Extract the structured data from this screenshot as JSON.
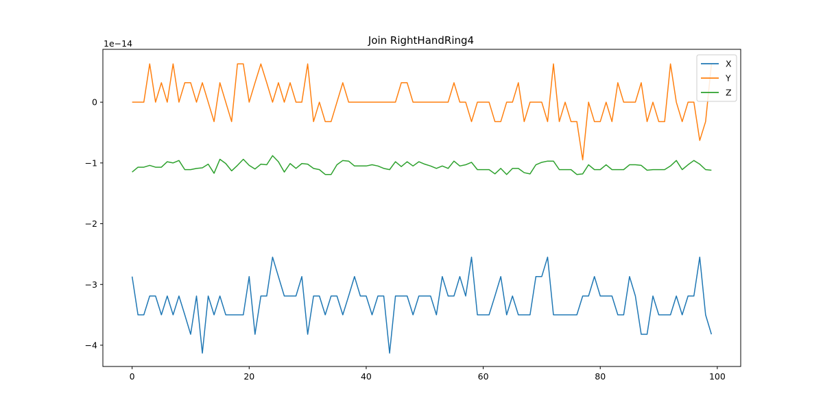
{
  "chart_data": {
    "type": "line",
    "title": "Join RightHandRing4",
    "offset_label": "1e−14",
    "xlim": [
      -5,
      104
    ],
    "ylim": [
      -4.35,
      0.87
    ],
    "xticks": [
      0,
      20,
      40,
      60,
      80,
      100
    ],
    "yticks": [
      0,
      -1,
      -2,
      -3,
      -4
    ],
    "xtick_labels": [
      "0",
      "20",
      "40",
      "60",
      "80",
      "100"
    ],
    "ytick_labels": [
      "0",
      "−1",
      "−2",
      "−3",
      "−4"
    ],
    "legend_position": "top-right",
    "grid": false,
    "series": [
      {
        "name": "X",
        "color": "#1f77b4",
        "values": [
          -2.87,
          -3.5,
          -3.5,
          -3.19,
          -3.19,
          -3.5,
          -3.19,
          -3.5,
          -3.19,
          -3.5,
          -3.82,
          -3.19,
          -4.13,
          -3.19,
          -3.5,
          -3.19,
          -3.5,
          -3.5,
          -3.5,
          -3.5,
          -2.87,
          -3.82,
          -3.19,
          -3.19,
          -2.55,
          -2.87,
          -3.19,
          -3.19,
          -3.19,
          -2.87,
          -3.82,
          -3.19,
          -3.19,
          -3.5,
          -3.19,
          -3.19,
          -3.5,
          -3.19,
          -2.87,
          -3.19,
          -3.19,
          -3.5,
          -3.19,
          -3.19,
          -4.13,
          -3.19,
          -3.19,
          -3.19,
          -3.5,
          -3.19,
          -3.19,
          -3.19,
          -3.5,
          -2.87,
          -3.19,
          -3.19,
          -2.87,
          -3.19,
          -2.55,
          -3.5,
          -3.5,
          -3.5,
          -3.19,
          -2.87,
          -3.5,
          -3.19,
          -3.5,
          -3.5,
          -3.5,
          -2.87,
          -2.87,
          -2.55,
          -3.5,
          -3.5,
          -3.5,
          -3.5,
          -3.5,
          -3.19,
          -3.19,
          -2.87,
          -3.19,
          -3.19,
          -3.19,
          -3.5,
          -3.5,
          -2.87,
          -3.19,
          -3.82,
          -3.82,
          -3.19,
          -3.5,
          -3.5,
          -3.5,
          -3.19,
          -3.5,
          -3.19,
          -3.19,
          -2.55,
          -3.5,
          -3.82
        ]
      },
      {
        "name": "Y",
        "color": "#ff7f0e",
        "values": [
          0,
          0,
          0,
          0.63,
          0,
          0.32,
          0,
          0.63,
          0,
          0.32,
          0.32,
          0,
          0.32,
          0,
          -0.32,
          0.32,
          0,
          -0.32,
          0.63,
          0.63,
          0,
          0.32,
          0.63,
          0.32,
          0,
          0.32,
          0,
          0.32,
          0,
          0,
          0.63,
          -0.32,
          0,
          -0.32,
          -0.32,
          0,
          0.32,
          0,
          0,
          0,
          0,
          0,
          0,
          0,
          0,
          0,
          0.32,
          0.32,
          0,
          0,
          0,
          0,
          0,
          0,
          0,
          0.32,
          0,
          0,
          -0.32,
          0,
          0,
          0,
          -0.32,
          -0.32,
          0,
          0,
          0.32,
          -0.32,
          0,
          0,
          0,
          -0.32,
          0.63,
          -0.32,
          0,
          -0.32,
          -0.32,
          -0.95,
          0,
          -0.32,
          -0.32,
          0,
          -0.32,
          0.32,
          0,
          0,
          0,
          0.32,
          -0.32,
          0,
          -0.32,
          -0.32,
          0.63,
          0,
          -0.32,
          0,
          0,
          -0.63,
          -0.32,
          0.63
        ]
      },
      {
        "name": "Z",
        "color": "#2ca02c",
        "values": [
          -1.15,
          -1.07,
          -1.07,
          -1.04,
          -1.07,
          -1.07,
          -0.98,
          -1.0,
          -0.96,
          -1.11,
          -1.11,
          -1.09,
          -1.08,
          -1.02,
          -1.17,
          -0.94,
          -1.01,
          -1.13,
          -1.04,
          -0.94,
          -1.04,
          -1.1,
          -1.02,
          -1.03,
          -0.88,
          -0.98,
          -1.15,
          -1.01,
          -1.09,
          -1.01,
          -1.02,
          -1.09,
          -1.11,
          -1.19,
          -1.19,
          -1.03,
          -0.96,
          -0.97,
          -1.05,
          -1.05,
          -1.05,
          -1.03,
          -1.05,
          -1.09,
          -1.11,
          -0.98,
          -1.06,
          -0.98,
          -1.05,
          -0.98,
          -1.02,
          -1.05,
          -1.09,
          -1.05,
          -1.09,
          -0.97,
          -1.05,
          -1.03,
          -0.99,
          -1.11,
          -1.11,
          -1.11,
          -1.18,
          -1.09,
          -1.19,
          -1.09,
          -1.09,
          -1.16,
          -1.18,
          -1.03,
          -0.99,
          -0.97,
          -0.97,
          -1.11,
          -1.11,
          -1.11,
          -1.19,
          -1.18,
          -1.03,
          -1.11,
          -1.11,
          -1.03,
          -1.11,
          -1.11,
          -1.11,
          -1.03,
          -1.03,
          -1.04,
          -1.12,
          -1.11,
          -1.11,
          -1.11,
          -1.05,
          -0.96,
          -1.11,
          -1.03,
          -0.96,
          -1.02,
          -1.11,
          -1.12
        ]
      }
    ]
  }
}
